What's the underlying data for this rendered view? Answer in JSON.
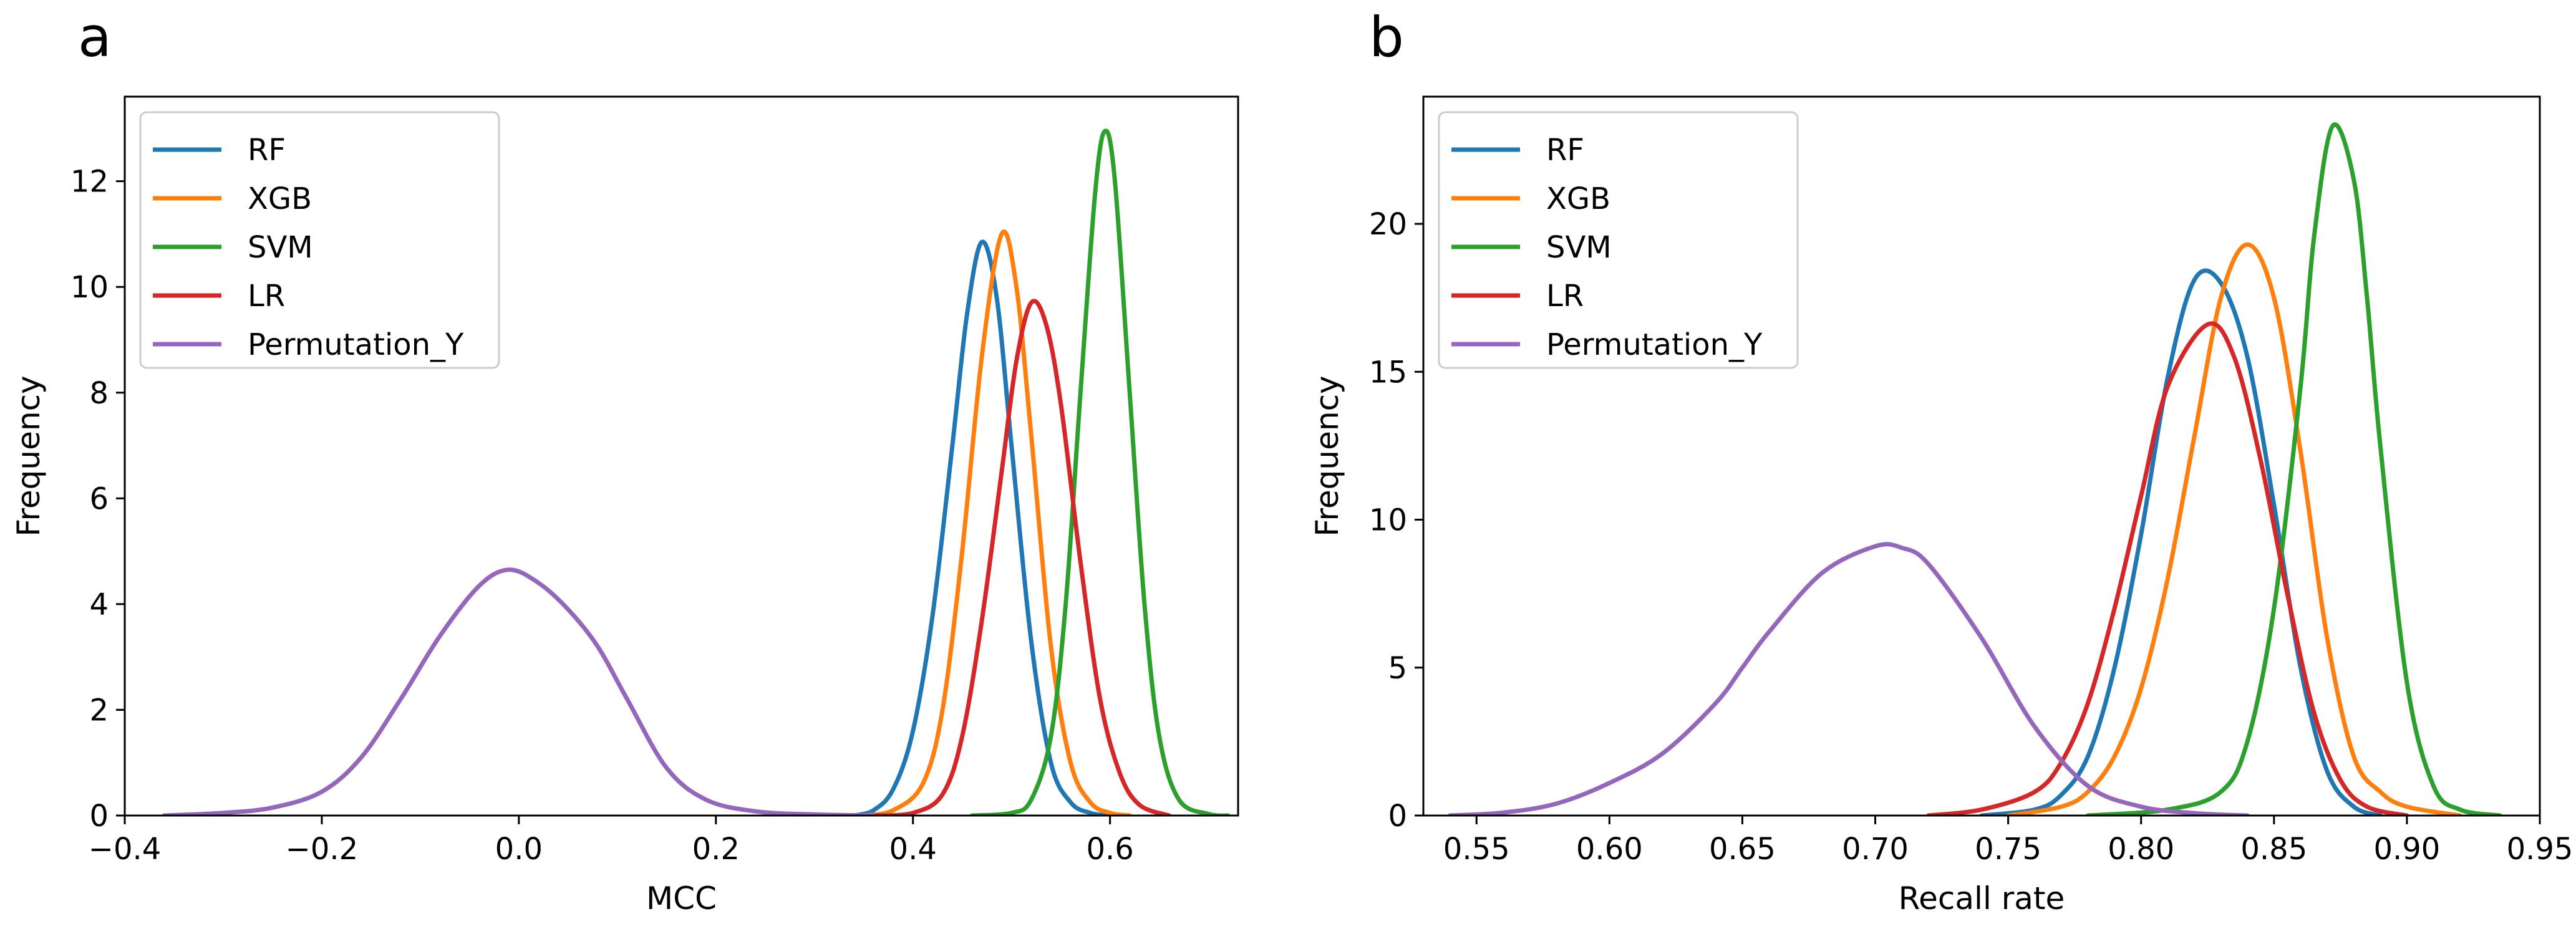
{
  "colors": {
    "RF": "#1f77b4",
    "XGB": "#ff7f0e",
    "SVM": "#2ca02c",
    "LR": "#d62728",
    "Permutation_Y": "#9467bd"
  },
  "chart_data": [
    {
      "type": "line",
      "panel_label": "a",
      "title": "",
      "xlabel": "MCC",
      "ylabel": "Frequency",
      "xlim": [
        -0.4,
        0.73
      ],
      "ylim": [
        0,
        13.6
      ],
      "xticks": [
        -0.4,
        -0.2,
        0.0,
        0.2,
        0.4,
        0.6
      ],
      "xtick_labels": [
        "−0.4",
        "−0.2",
        "0.0",
        "0.2",
        "0.4",
        "0.6"
      ],
      "yticks": [
        0,
        2,
        4,
        6,
        8,
        10,
        12
      ],
      "ytick_labels": [
        "0",
        "2",
        "4",
        "6",
        "8",
        "10",
        "12"
      ],
      "legend_position": "top-left",
      "series": [
        {
          "name": "RF",
          "x": [
            0.34,
            0.36,
            0.38,
            0.4,
            0.42,
            0.44,
            0.455,
            0.47,
            0.485,
            0.5,
            0.52,
            0.54,
            0.56,
            0.58,
            0.6
          ],
          "y": [
            0,
            0.1,
            0.5,
            1.6,
            3.8,
            7.0,
            9.5,
            10.85,
            9.8,
            7.0,
            3.3,
            1.0,
            0.25,
            0.05,
            0
          ]
        },
        {
          "name": "XGB",
          "x": [
            0.35,
            0.38,
            0.41,
            0.43,
            0.45,
            0.47,
            0.49,
            0.505,
            0.52,
            0.54,
            0.56,
            0.58,
            0.6,
            0.62
          ],
          "y": [
            0,
            0.1,
            0.6,
            2.0,
            5.0,
            8.7,
            11.0,
            10.0,
            7.2,
            3.2,
            1.0,
            0.25,
            0.05,
            0
          ]
        },
        {
          "name": "SVM",
          "x": [
            0.46,
            0.5,
            0.52,
            0.54,
            0.555,
            0.57,
            0.585,
            0.595,
            0.605,
            0.62,
            0.635,
            0.65,
            0.67,
            0.7,
            0.72
          ],
          "y": [
            0,
            0.05,
            0.3,
            1.5,
            4.0,
            8.0,
            11.8,
            12.95,
            12.0,
            8.0,
            4.0,
            1.5,
            0.3,
            0.03,
            0
          ]
        },
        {
          "name": "LR",
          "x": [
            0.36,
            0.4,
            0.43,
            0.45,
            0.47,
            0.49,
            0.505,
            0.52,
            0.535,
            0.55,
            0.57,
            0.59,
            0.61,
            0.63,
            0.66
          ],
          "y": [
            0,
            0.05,
            0.4,
            1.5,
            3.7,
            6.5,
            8.6,
            9.7,
            9.3,
            7.8,
            4.8,
            2.2,
            0.8,
            0.2,
            0
          ]
        },
        {
          "name": "Permutation_Y",
          "x": [
            -0.36,
            -0.3,
            -0.25,
            -0.2,
            -0.16,
            -0.12,
            -0.08,
            -0.04,
            -0.01,
            0.02,
            0.05,
            0.08,
            0.11,
            0.15,
            0.19,
            0.24,
            0.3,
            0.36
          ],
          "y": [
            0,
            0.05,
            0.15,
            0.45,
            1.1,
            2.2,
            3.4,
            4.35,
            4.65,
            4.4,
            3.9,
            3.2,
            2.2,
            0.9,
            0.3,
            0.08,
            0.02,
            0
          ]
        }
      ]
    },
    {
      "type": "line",
      "panel_label": "b",
      "title": "",
      "xlabel": "Recall rate",
      "ylabel": "Frequency",
      "xlim": [
        0.53,
        0.95
      ],
      "ylim": [
        0,
        24.3
      ],
      "xticks": [
        0.55,
        0.6,
        0.65,
        0.7,
        0.75,
        0.8,
        0.85,
        0.9,
        0.95
      ],
      "xtick_labels": [
        "0.55",
        "0.60",
        "0.65",
        "0.70",
        "0.75",
        "0.80",
        "0.85",
        "0.90",
        "0.95"
      ],
      "yticks": [
        0,
        5,
        10,
        15,
        20
      ],
      "ytick_labels": [
        "0",
        "5",
        "10",
        "15",
        "20"
      ],
      "legend_position": "top-left",
      "series": [
        {
          "name": "RF",
          "x": [
            0.74,
            0.76,
            0.77,
            0.78,
            0.79,
            0.8,
            0.81,
            0.82,
            0.83,
            0.84,
            0.85,
            0.86,
            0.87,
            0.88,
            0.89
          ],
          "y": [
            0,
            0.2,
            0.7,
            2.0,
            5.0,
            9.5,
            14.8,
            18.1,
            18.0,
            15.5,
            10.5,
            5.0,
            1.5,
            0.3,
            0
          ]
        },
        {
          "name": "XGB",
          "x": [
            0.75,
            0.77,
            0.78,
            0.79,
            0.8,
            0.81,
            0.82,
            0.83,
            0.84,
            0.85,
            0.86,
            0.87,
            0.88,
            0.89,
            0.9,
            0.92
          ],
          "y": [
            0,
            0.3,
            0.8,
            2.0,
            4.3,
            8.0,
            12.8,
            17.5,
            19.3,
            17.5,
            12.3,
            6.0,
            2.0,
            0.8,
            0.3,
            0
          ]
        },
        {
          "name": "SVM",
          "x": [
            0.78,
            0.81,
            0.83,
            0.84,
            0.85,
            0.86,
            0.865,
            0.872,
            0.88,
            0.885,
            0.89,
            0.9,
            0.91,
            0.92,
            0.935
          ],
          "y": [
            0,
            0.2,
            0.8,
            2.5,
            7.0,
            14.5,
            19.5,
            23.3,
            21.5,
            17.5,
            12.5,
            4.5,
            1.0,
            0.2,
            0
          ]
        },
        {
          "name": "LR",
          "x": [
            0.72,
            0.74,
            0.76,
            0.77,
            0.78,
            0.79,
            0.8,
            0.81,
            0.825,
            0.835,
            0.845,
            0.855,
            0.865,
            0.875,
            0.885,
            0.9
          ],
          "y": [
            0,
            0.2,
            0.8,
            1.8,
            3.8,
            7.0,
            10.8,
            14.5,
            16.6,
            15.5,
            12.0,
            7.5,
            3.5,
            1.2,
            0.3,
            0
          ]
        },
        {
          "name": "Permutation_Y",
          "x": [
            0.54,
            0.56,
            0.58,
            0.6,
            0.62,
            0.64,
            0.65,
            0.66,
            0.68,
            0.7,
            0.71,
            0.72,
            0.74,
            0.76,
            0.78,
            0.8,
            0.82,
            0.84
          ],
          "y": [
            0,
            0.1,
            0.4,
            1.1,
            2.1,
            3.8,
            5.0,
            6.2,
            8.2,
            9.1,
            9.05,
            8.5,
            6.0,
            3.0,
            1.0,
            0.3,
            0.08,
            0
          ]
        }
      ]
    }
  ]
}
